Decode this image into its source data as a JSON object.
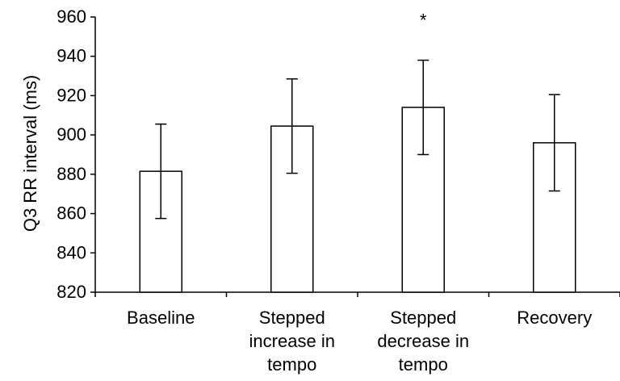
{
  "chart_data": {
    "type": "bar",
    "categories": [
      [
        "Baseline"
      ],
      [
        "Stepped",
        "increase in",
        "tempo"
      ],
      [
        "Stepped",
        "decrease in",
        "tempo"
      ],
      [
        "Recovery"
      ]
    ],
    "values": [
      881.5,
      904.5,
      914,
      896
    ],
    "error": [
      24,
      24,
      24,
      24.5
    ],
    "annotations": [
      "",
      "",
      "*",
      ""
    ],
    "ylabel": "Q3 RR interval (ms)",
    "ylim": [
      820,
      960
    ],
    "yticks": [
      820,
      840,
      860,
      880,
      900,
      920,
      940,
      960
    ],
    "grid": false,
    "bar_fill": "#ffffff",
    "bar_stroke": "#000000"
  }
}
